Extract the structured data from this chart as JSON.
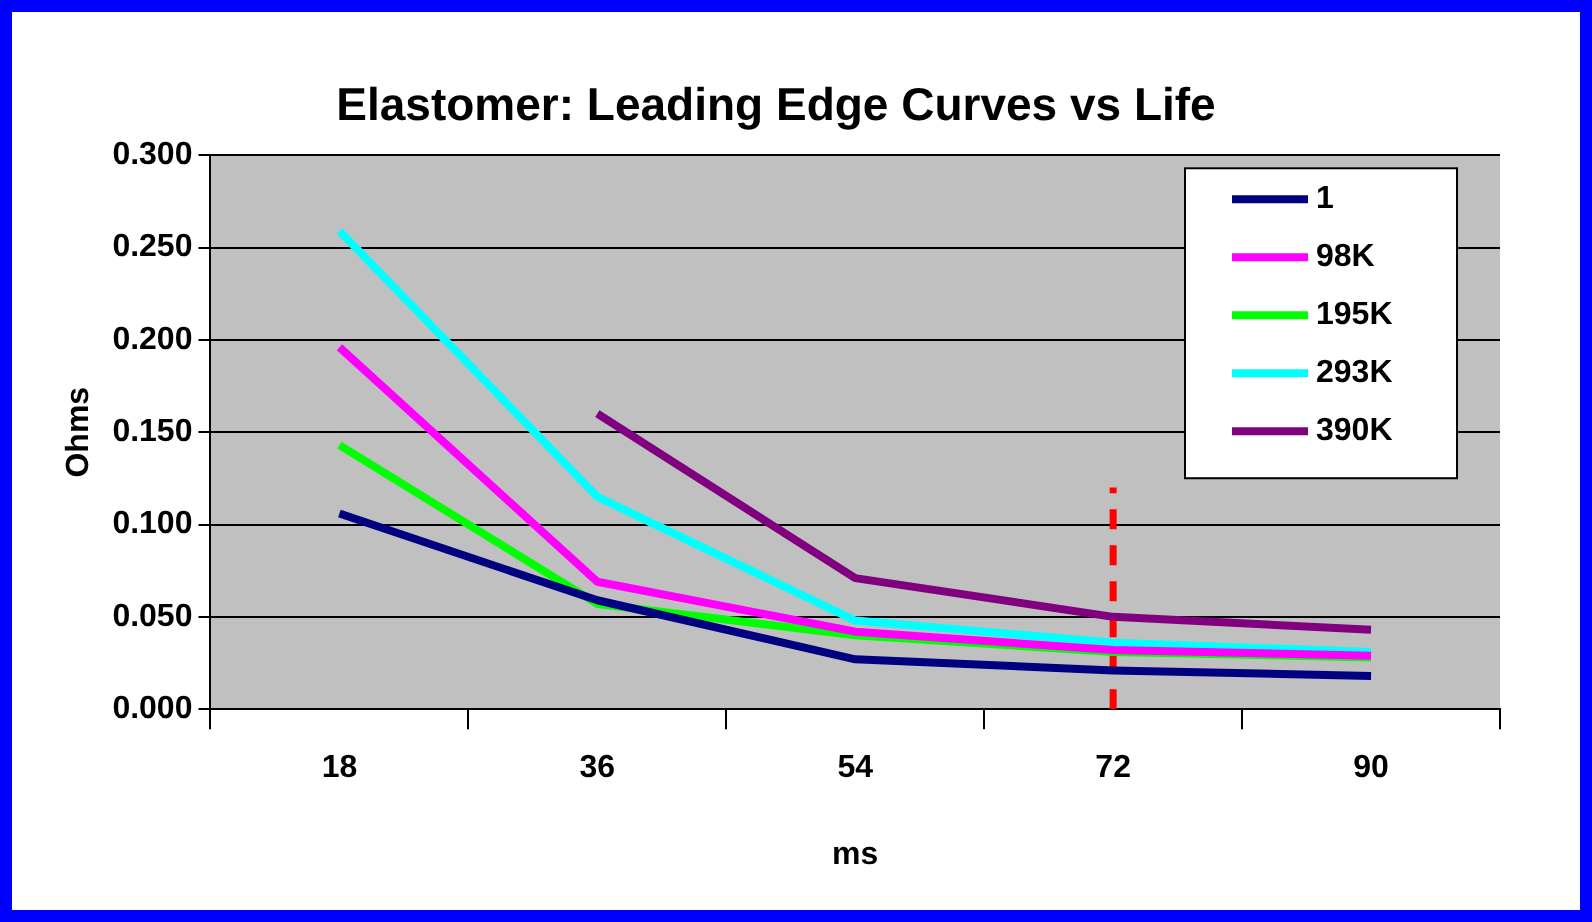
{
  "chart_data": {
    "type": "line",
    "title": "Elastomer: Leading Edge Curves vs Life",
    "xlabel": "ms",
    "ylabel": "Ohms",
    "categories": [
      "18",
      "36",
      "54",
      "72",
      "90"
    ],
    "series": [
      {
        "name": "1",
        "color": "#000080",
        "values": [
          0.106,
          0.059,
          0.027,
          0.021,
          0.018
        ]
      },
      {
        "name": "98K",
        "color": "#ff00ff",
        "values": [
          0.196,
          0.069,
          0.042,
          0.032,
          0.029
        ]
      },
      {
        "name": "195K",
        "color": "#00ff00",
        "values": [
          0.143,
          0.057,
          0.04,
          0.031,
          0.028
        ]
      },
      {
        "name": "293K",
        "color": "#00ffff",
        "values": [
          0.259,
          0.115,
          0.048,
          0.036,
          0.031
        ]
      },
      {
        "name": "390K",
        "color": "#800080",
        "values": [
          null,
          0.16,
          0.071,
          0.05,
          0.043
        ]
      },
      {
        "type": "line",
        "color": "#ff0000",
        "x": [
          "72",
          "72"
        ],
        "values": [
          0,
          0.12
        ],
        "line_style": "dashed"
      }
    ],
    "ylim": [
      0,
      0.3
    ],
    "yticks": [
      {
        "value": 0,
        "label": "0.000"
      },
      {
        "value": 0.05,
        "label": "0.050"
      },
      {
        "value": 0.1,
        "label": "0.100"
      },
      {
        "value": 0.15,
        "label": "0.150"
      },
      {
        "value": 0.2,
        "label": "0.200"
      },
      {
        "value": 0.25,
        "label": "0.250"
      },
      {
        "value": 0.3,
        "label": "0.300"
      }
    ],
    "grid": "y",
    "legend": "top right",
    "marker": "none",
    "line_style": "solid"
  }
}
